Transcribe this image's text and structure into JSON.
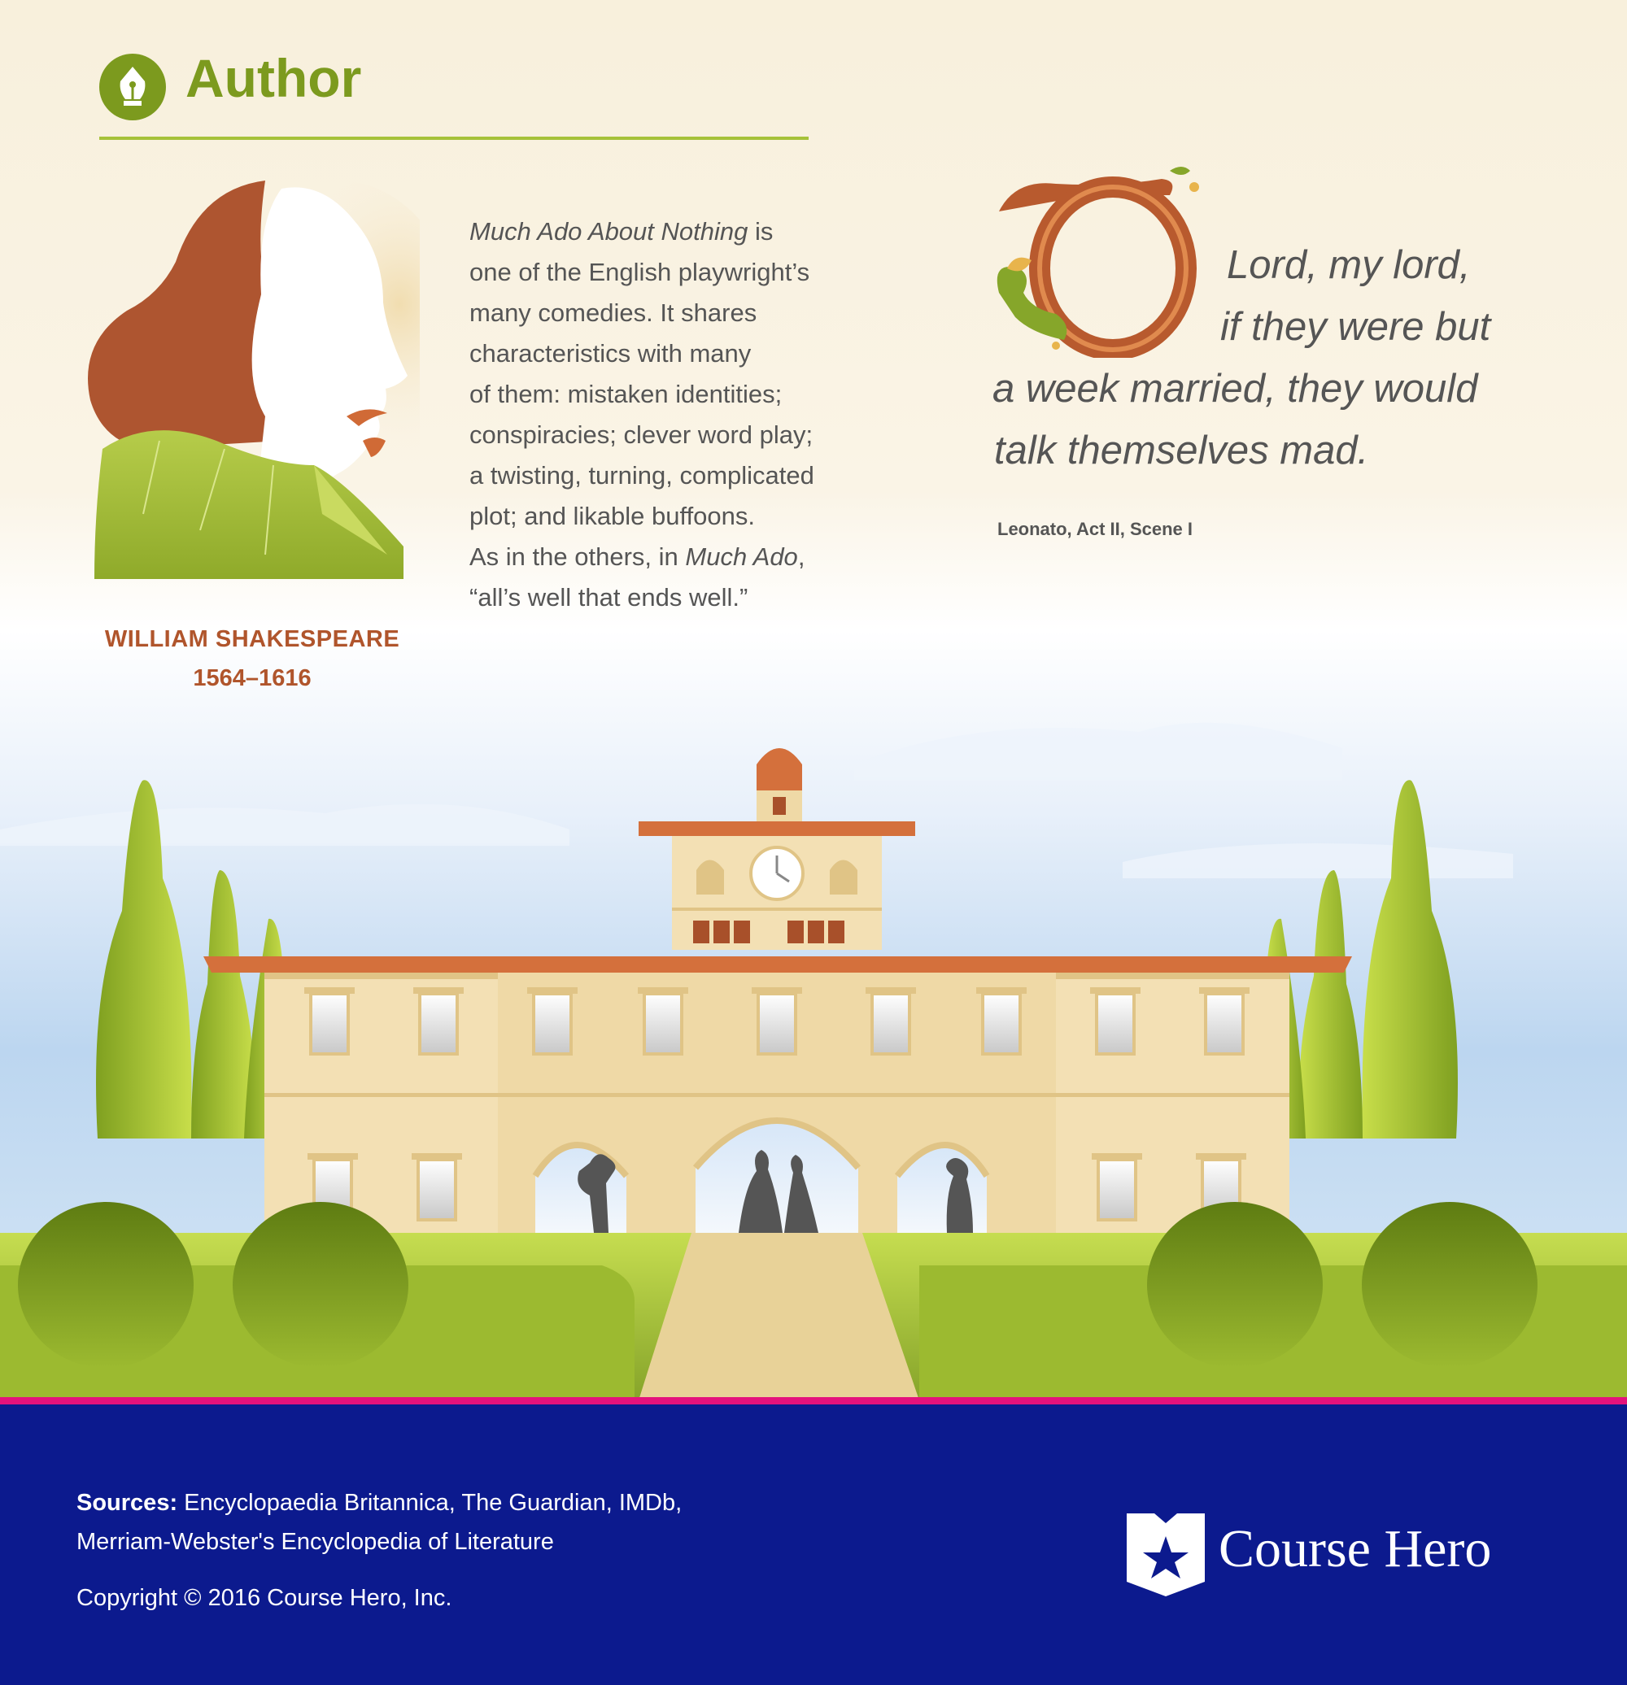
{
  "header": {
    "title": "Author",
    "accent_color": "#7c9a1e",
    "icon": "pen-nib-icon"
  },
  "author": {
    "name": "WILLIAM SHAKESPEARE",
    "years": "1564–1616",
    "name_color": "#b0552c"
  },
  "description": {
    "title_italic": "Much Ado About Nothing",
    "lines": [
      " is",
      "one of the English playwright’s",
      "many comedies. It shares",
      "characteristics with many",
      "of them: mistaken identities;",
      "conspiracies; clever word play;",
      "a twisting, turning, complicated",
      "plot; and likable buffoons.",
      "As in the others, in "
    ],
    "italic_2": "Much Ado",
    "after_italic_2": ",",
    "last_line": "“all’s well that ends well.”"
  },
  "quote": {
    "dropcap_letter": "O",
    "line1": "Lord, my lord,",
    "line2": "if they were but",
    "line3": "a week married, they would",
    "line4": "talk themselves mad.",
    "attribution": "Leonato, Act II, Scene I"
  },
  "footer": {
    "background_color": "#0c1a8e",
    "sources_label": "Sources:",
    "sources_text": " Encyclopaedia Britannica, The Guardian, IMDb,",
    "sources_text_2": "Merriam-Webster's Encyclopedia of Literature",
    "copyright": "Copyright © 2016 Course Hero, Inc.",
    "logo_text": "Course Hero",
    "logo_icon": "star-shield-icon"
  }
}
